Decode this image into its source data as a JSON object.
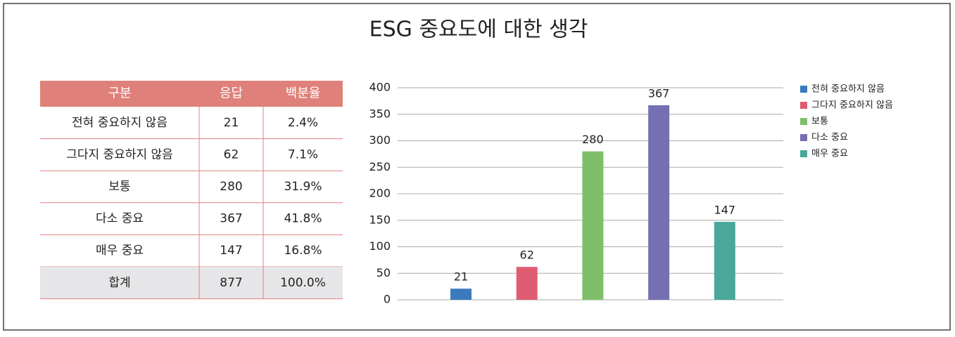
{
  "table": {
    "header": [
      "구분",
      "응답",
      "백분율"
    ],
    "rows": [
      [
        "전혀 중요하지 않음",
        "21",
        "2.4%"
      ],
      [
        "그다지 중요하지 않음",
        "62",
        "7.1%"
      ],
      [
        "보통",
        "280",
        "31.9%"
      ],
      [
        "다소 중요",
        "367",
        "41.8%"
      ],
      [
        "매우 중요",
        "147",
        "16.8%"
      ]
    ],
    "total": [
      "합계",
      "877",
      "100.0%"
    ]
  },
  "chart_data": {
    "type": "bar",
    "title": "ESG 중요도에 대한 생각",
    "categories": [
      "전혀 중요하지 않음",
      "그다지 중요하지 않음",
      "보통",
      "다소 중요",
      "매우 중요"
    ],
    "values": [
      21,
      62,
      280,
      367,
      147
    ],
    "colors": [
      "#3a7abf",
      "#e05c72",
      "#7fbf6a",
      "#7570b3",
      "#4aa89a"
    ],
    "ylim": [
      0,
      400
    ],
    "yticks": [
      0,
      50,
      100,
      150,
      200,
      250,
      300,
      350,
      400
    ],
    "grid": true,
    "legend": "right"
  }
}
